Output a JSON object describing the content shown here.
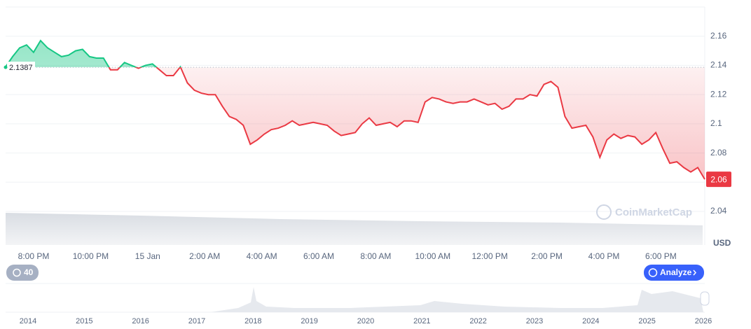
{
  "chart_data": {
    "type": "line",
    "currency": "USD",
    "watermark": "CoinMarketCap",
    "badge": "40",
    "button": "Analyze",
    "baseline": 2.1387,
    "last_label": "2.06",
    "up_color": "#16c784",
    "down_color": "#ea3943",
    "x_labels": [
      "8:00 PM",
      "10:00 PM",
      "15 Jan",
      "2:00 AM",
      "4:00 AM",
      "6:00 AM",
      "8:00 AM",
      "10:00 AM",
      "12:00 PM",
      "2:00 PM",
      "4:00 PM",
      "6:00 PM"
    ],
    "navigator_years": [
      "2014",
      "2015",
      "2016",
      "2017",
      "2018",
      "2019",
      "2020",
      "2021",
      "2022",
      "2023",
      "2024",
      "2025",
      "2026"
    ],
    "values": [
      2.139,
      2.146,
      2.152,
      2.154,
      2.149,
      2.157,
      2.152,
      2.149,
      2.146,
      2.147,
      2.15,
      2.151,
      2.146,
      2.145,
      2.145,
      2.137,
      2.137,
      2.142,
      2.14,
      2.138,
      2.14,
      2.141,
      2.137,
      2.133,
      2.133,
      2.139,
      2.128,
      2.123,
      2.121,
      2.12,
      2.12,
      2.112,
      2.105,
      2.103,
      2.099,
      2.086,
      2.089,
      2.093,
      2.096,
      2.097,
      2.099,
      2.102,
      2.099,
      2.1,
      2.101,
      2.1,
      2.099,
      2.095,
      2.092,
      2.093,
      2.094,
      2.1,
      2.104,
      2.099,
      2.1,
      2.101,
      2.098,
      2.102,
      2.102,
      2.101,
      2.115,
      2.118,
      2.117,
      2.115,
      2.114,
      2.115,
      2.115,
      2.117,
      2.115,
      2.113,
      2.114,
      2.11,
      2.112,
      2.117,
      2.117,
      2.12,
      2.119,
      2.127,
      2.129,
      2.125,
      2.105,
      2.097,
      2.098,
      2.099,
      2.091,
      2.077,
      2.089,
      2.093,
      2.09,
      2.092,
      2.091,
      2.086,
      2.089,
      2.094,
      2.083,
      2.073,
      2.074,
      2.07,
      2.067,
      2.07,
      2.062
    ],
    "ylim": [
      2.017,
      2.18
    ],
    "yticks": [
      2.04,
      2.06,
      2.08,
      2.1,
      2.12,
      2.14,
      2.16
    ],
    "grid": true
  }
}
